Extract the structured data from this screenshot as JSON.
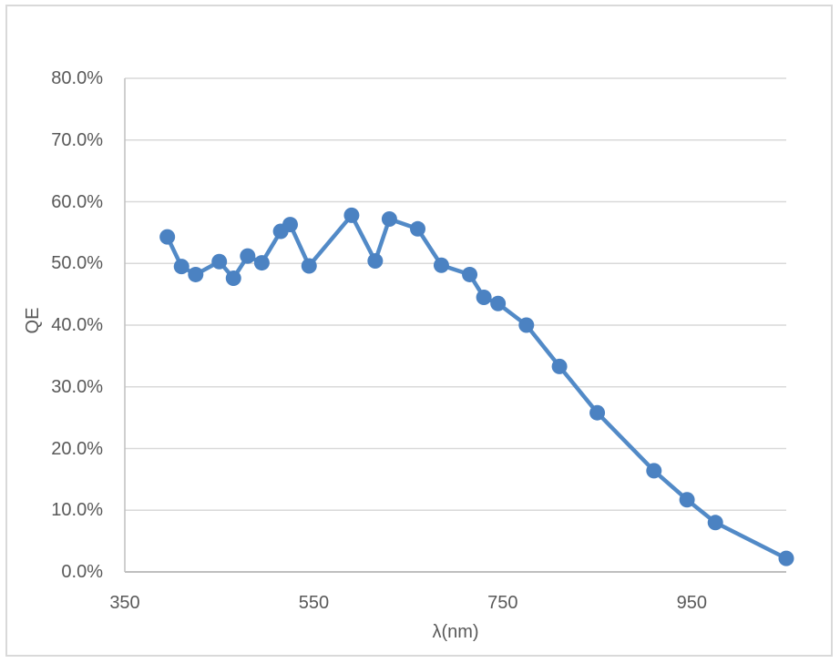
{
  "chart_data": {
    "type": "line",
    "title": "",
    "xlabel": "λ(nm)",
    "ylabel": "QE",
    "legend": "none",
    "grid": "horizontal",
    "x_range": [
      350,
      1050
    ],
    "y_range": [
      0,
      80
    ],
    "x_ticks": [
      {
        "label": "350",
        "value": 350
      },
      {
        "label": "550",
        "value": 550
      },
      {
        "label": "750",
        "value": 750
      },
      {
        "label": "950",
        "value": 950
      }
    ],
    "y_ticks": [
      {
        "label": "80.0%",
        "value": 80
      },
      {
        "label": "70.0%",
        "value": 70
      },
      {
        "label": "60.0%",
        "value": 60
      },
      {
        "label": "50.0%",
        "value": 50
      },
      {
        "label": "40.0%",
        "value": 40
      },
      {
        "label": "30.0%",
        "value": 30
      },
      {
        "label": "20.0%",
        "value": 20
      },
      {
        "label": "10.0%",
        "value": 10
      },
      {
        "label": "0.0%",
        "value": 0
      }
    ],
    "series": [
      {
        "name": "QE",
        "x": [
          395,
          410,
          425,
          450,
          465,
          480,
          495,
          515,
          525,
          545,
          590,
          615,
          630,
          660,
          685,
          715,
          730,
          745,
          775,
          810,
          850,
          910,
          945,
          975,
          1050
        ],
        "y": [
          54.3,
          49.5,
          48.2,
          50.3,
          47.6,
          51.2,
          50.1,
          55.2,
          56.3,
          49.6,
          57.8,
          50.4,
          57.2,
          55.6,
          49.7,
          48.2,
          44.5,
          43.5,
          40.0,
          33.3,
          25.8,
          16.4,
          11.7,
          8.0,
          2.2
        ]
      }
    ],
    "colors": {
      "line": "#528ac7",
      "marker": "#4b82c2",
      "gridline": "#d9d9d9",
      "axis_line": "#bfbfbf",
      "tick_text": "#595959",
      "frame_border": "#d9d9d9"
    }
  }
}
